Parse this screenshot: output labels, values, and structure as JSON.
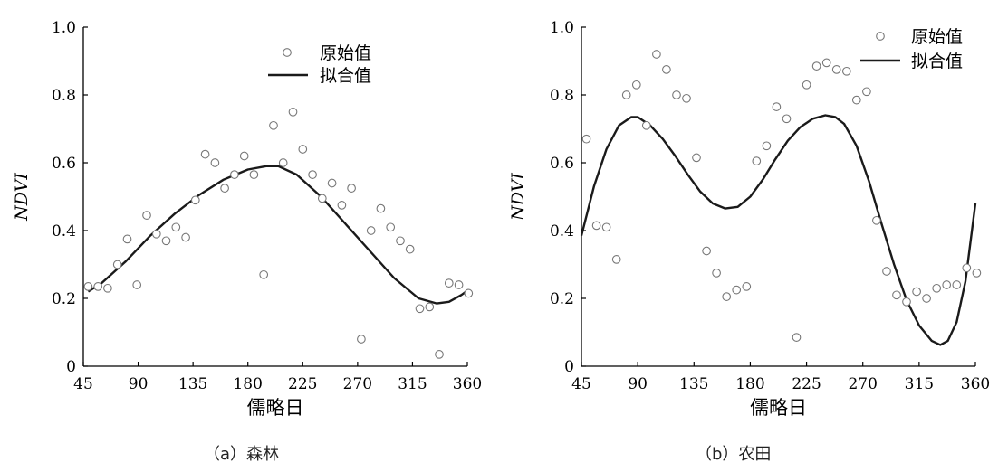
{
  "chart_data": [
    {
      "type": "scatter",
      "caption": "（a）森林",
      "xlabel": "儒略日",
      "ylabel": "NDVI",
      "xlim": [
        45,
        360
      ],
      "ylim": [
        0,
        1.0
      ],
      "xticks": [
        45,
        90,
        135,
        180,
        225,
        270,
        315,
        360
      ],
      "yticks": [
        0,
        0.2,
        0.4,
        0.6,
        0.8,
        1.0
      ],
      "ytick_labels": [
        "0",
        "0.2",
        "0.4",
        "0.6",
        "0.8",
        "1.0"
      ],
      "legend_position": "top-right",
      "series": [
        {
          "name": "原始值",
          "marker": "open-circle",
          "x": [
            49,
            57,
            65,
            73,
            81,
            89,
            97,
            105,
            113,
            121,
            129,
            137,
            145,
            153,
            161,
            169,
            177,
            185,
            193,
            201,
            209,
            217,
            225,
            233,
            241,
            249,
            257,
            265,
            273,
            281,
            289,
            297,
            305,
            313,
            321,
            329,
            337,
            345,
            353,
            361
          ],
          "y": [
            0.235,
            0.235,
            0.23,
            0.3,
            0.375,
            0.24,
            0.445,
            0.39,
            0.37,
            0.41,
            0.38,
            0.49,
            0.625,
            0.6,
            0.525,
            0.565,
            0.62,
            0.565,
            0.27,
            0.71,
            0.6,
            0.75,
            0.64,
            0.565,
            0.495,
            0.54,
            0.475,
            0.525,
            0.08,
            0.4,
            0.465,
            0.41,
            0.37,
            0.345,
            0.17,
            0.175,
            0.035,
            0.245,
            0.24,
            0.215
          ]
        },
        {
          "name": "拟合值",
          "line": "solid",
          "x": [
            49,
            60,
            80,
            100,
            120,
            140,
            160,
            180,
            195,
            205,
            220,
            240,
            260,
            280,
            300,
            320,
            335,
            345,
            355,
            361
          ],
          "y": [
            0.22,
            0.245,
            0.31,
            0.385,
            0.45,
            0.505,
            0.55,
            0.58,
            0.59,
            0.59,
            0.565,
            0.5,
            0.42,
            0.34,
            0.26,
            0.2,
            0.185,
            0.19,
            0.21,
            0.225
          ]
        }
      ]
    },
    {
      "type": "scatter",
      "caption": "（b）农田",
      "xlabel": "儒略日",
      "ylabel": "NDVI",
      "xlim": [
        45,
        360
      ],
      "ylim": [
        0,
        1.0
      ],
      "xticks": [
        45,
        90,
        135,
        180,
        225,
        270,
        315,
        360
      ],
      "yticks": [
        0,
        0.2,
        0.4,
        0.6,
        0.8,
        1.0
      ],
      "ytick_labels": [
        "0",
        "0.2",
        "0.4",
        "0.6",
        "0.8",
        "1.0"
      ],
      "legend_position": "top-right",
      "series": [
        {
          "name": "原始值",
          "marker": "open-circle",
          "x": [
            49,
            57,
            65,
            73,
            81,
            89,
            97,
            105,
            113,
            121,
            129,
            137,
            145,
            153,
            161,
            169,
            177,
            185,
            193,
            201,
            209,
            217,
            225,
            233,
            241,
            249,
            257,
            265,
            273,
            281,
            289,
            297,
            305,
            313,
            321,
            329,
            337,
            345,
            353,
            361
          ],
          "y": [
            0.67,
            0.415,
            0.41,
            0.315,
            0.8,
            0.83,
            0.71,
            0.92,
            0.875,
            0.8,
            0.79,
            0.615,
            0.34,
            0.275,
            0.205,
            0.225,
            0.235,
            0.605,
            0.65,
            0.765,
            0.73,
            0.085,
            0.83,
            0.885,
            0.895,
            0.875,
            0.87,
            0.785,
            0.81,
            0.43,
            0.28,
            0.21,
            0.19,
            0.22,
            0.2,
            0.23,
            0.24,
            0.24,
            0.29,
            0.275
          ]
        },
        {
          "name": "拟合值",
          "line": "solid",
          "x": [
            45,
            55,
            65,
            75,
            85,
            90,
            100,
            110,
            120,
            130,
            140,
            150,
            160,
            170,
            180,
            190,
            200,
            210,
            220,
            230,
            240,
            248,
            255,
            265,
            275,
            285,
            295,
            305,
            315,
            325,
            332,
            338,
            345,
            352,
            360
          ],
          "y": [
            0.385,
            0.53,
            0.64,
            0.71,
            0.735,
            0.735,
            0.71,
            0.67,
            0.62,
            0.565,
            0.515,
            0.48,
            0.465,
            0.47,
            0.5,
            0.55,
            0.61,
            0.665,
            0.705,
            0.73,
            0.74,
            0.735,
            0.715,
            0.65,
            0.545,
            0.42,
            0.3,
            0.195,
            0.12,
            0.075,
            0.063,
            0.075,
            0.13,
            0.25,
            0.48
          ]
        }
      ]
    }
  ]
}
